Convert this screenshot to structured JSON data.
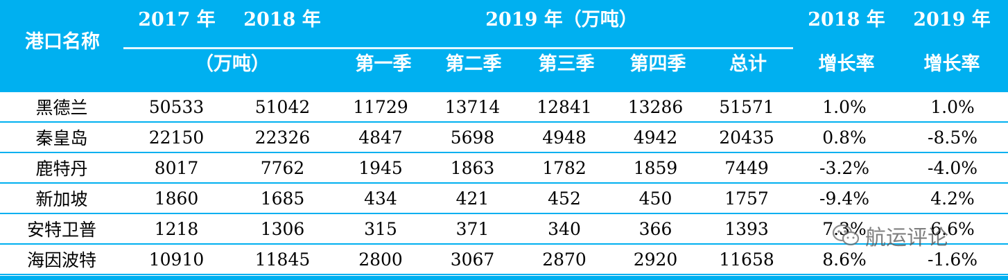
{
  "header": {
    "port_name": "港口名称",
    "y2017": "2017 年",
    "y2018": "2018 年",
    "unit_left": "（万吨）",
    "y2019_group": "2019 年（万吨）",
    "q1": "第一季",
    "q2": "第二季",
    "q3": "第三季",
    "q4": "第四季",
    "total": "总计",
    "growth2018_year": "2018 年",
    "growth2018_label": "增长率",
    "growth2019_year": "2019 年",
    "growth2019_label": "增长率"
  },
  "rows": [
    {
      "port": "黑德兰",
      "y2017": "50533",
      "y2018": "51042",
      "q1": "11729",
      "q2": "13714",
      "q3": "12841",
      "q4": "13286",
      "total": "51571",
      "g2018": "1.0%",
      "g2019": "1.0%"
    },
    {
      "port": "秦皇岛",
      "y2017": "22150",
      "y2018": "22326",
      "q1": "4847",
      "q2": "5698",
      "q3": "4948",
      "q4": "4942",
      "total": "20435",
      "g2018": "0.8%",
      "g2019": "-8.5%"
    },
    {
      "port": "鹿特丹",
      "y2017": "8017",
      "y2018": "7762",
      "q1": "1945",
      "q2": "1863",
      "q3": "1782",
      "q4": "1859",
      "total": "7449",
      "g2018": "-3.2%",
      "g2019": "-4.0%"
    },
    {
      "port": "新加坡",
      "y2017": "1860",
      "y2018": "1685",
      "q1": "434",
      "q2": "421",
      "q3": "452",
      "q4": "450",
      "total": "1757",
      "g2018": "-9.4%",
      "g2019": "4.2%"
    },
    {
      "port": "安特卫普",
      "y2017": "1218",
      "y2018": "1306",
      "q1": "315",
      "q2": "371",
      "q3": "340",
      "q4": "366",
      "total": "1393",
      "g2018": "7.3%",
      "g2019": "6.6%"
    },
    {
      "port": "海因波特",
      "y2017": "10910",
      "y2018": "11845",
      "q1": "2800",
      "q2": "3067",
      "q3": "2870",
      "q4": "2920",
      "total": "11658",
      "g2018": "8.6%",
      "g2019": "-1.6%"
    }
  ],
  "watermark": {
    "icon": "wechat-icon",
    "text": "航运评论"
  },
  "colors": {
    "header_bg": "#00b0f0",
    "header_text": "#ffffff",
    "rule": "#00b0f0"
  }
}
